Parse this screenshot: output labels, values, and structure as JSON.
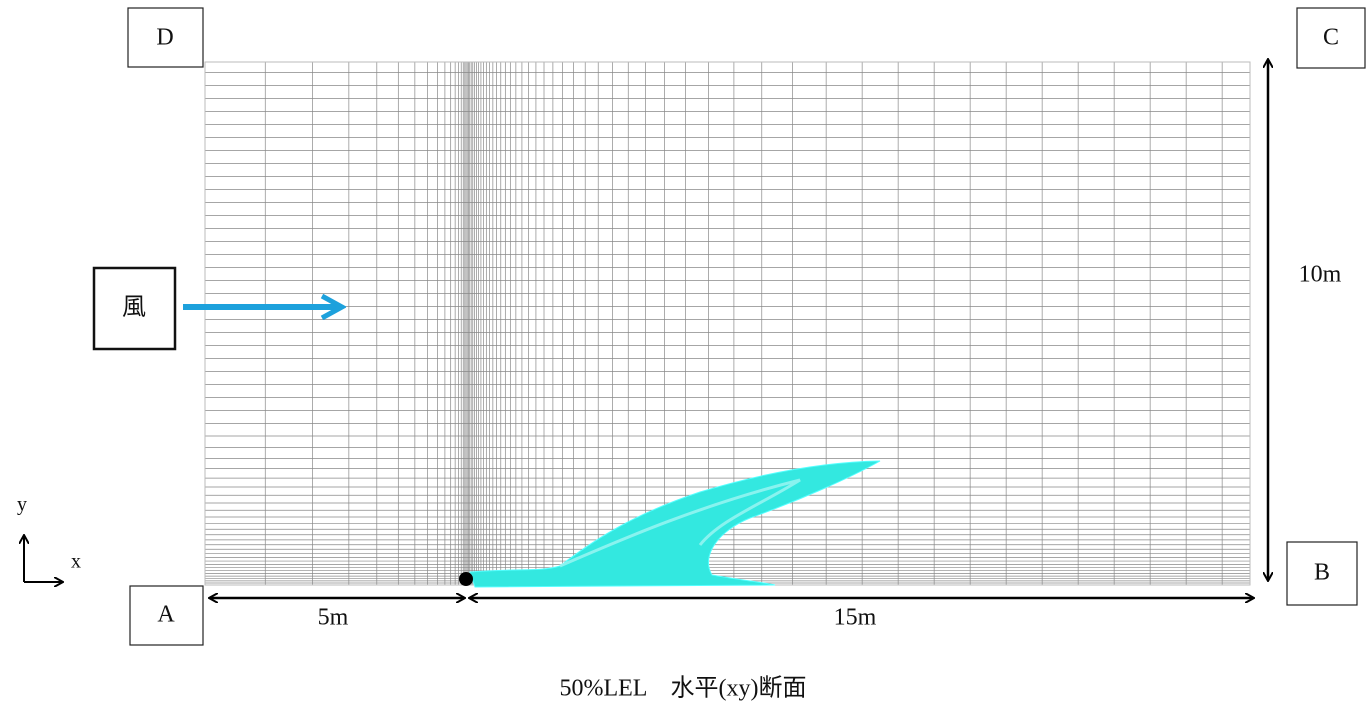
{
  "labels": {
    "a": "A",
    "b": "B",
    "c": "C",
    "d": "D"
  },
  "wind": "風",
  "axes": {
    "y": "y",
    "x": "x"
  },
  "dimensions": {
    "left": "5m",
    "right": "15m",
    "height": "10m"
  },
  "caption": "50%LEL　水平(xy)断面"
}
